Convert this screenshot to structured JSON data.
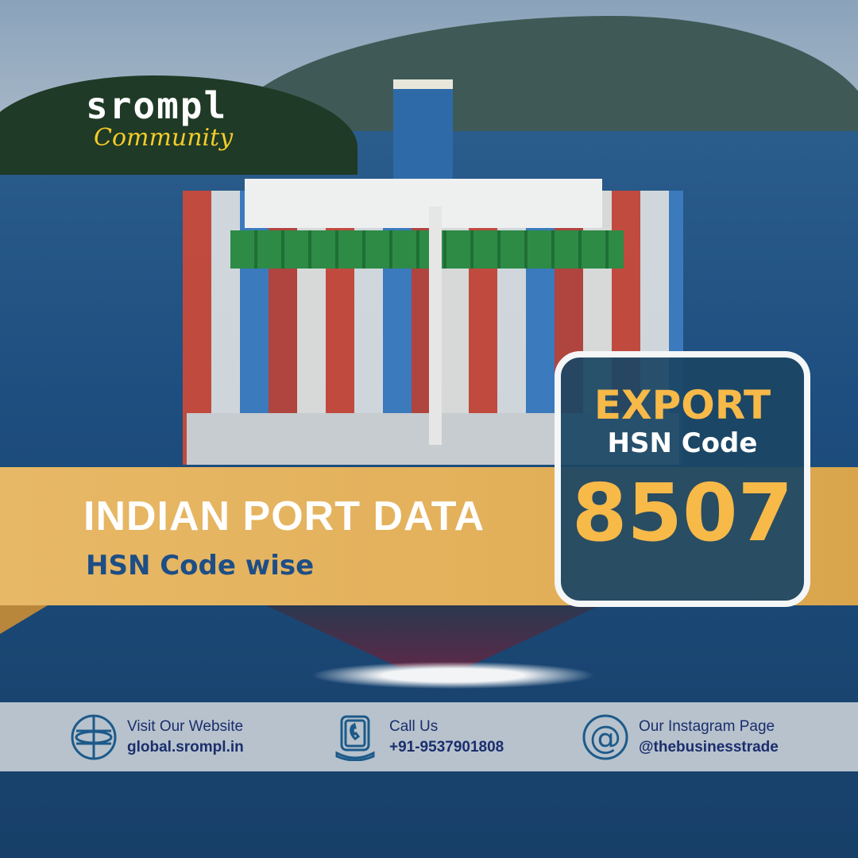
{
  "logo": {
    "brand": "srompl",
    "tagline": "Community"
  },
  "banner": {
    "title": "INDIAN PORT DATA",
    "subtitle": "HSN Code wise"
  },
  "code_box": {
    "type": "EXPORT",
    "label": "HSN Code",
    "code": "8507"
  },
  "contacts": [
    {
      "icon": "globe-icon",
      "label": "Visit Our Website",
      "value": "global.srompl.in"
    },
    {
      "icon": "phone-icon",
      "label": "Call Us",
      "value": "+91-9537901808"
    },
    {
      "icon": "at-sign-icon",
      "label": "Our Instagram Page",
      "value": "@thebusinesstrade"
    }
  ],
  "colors": {
    "gold": "#f7b948",
    "navy": "#1d4e86",
    "box": "#1b4664",
    "band": "#e5b45e"
  }
}
